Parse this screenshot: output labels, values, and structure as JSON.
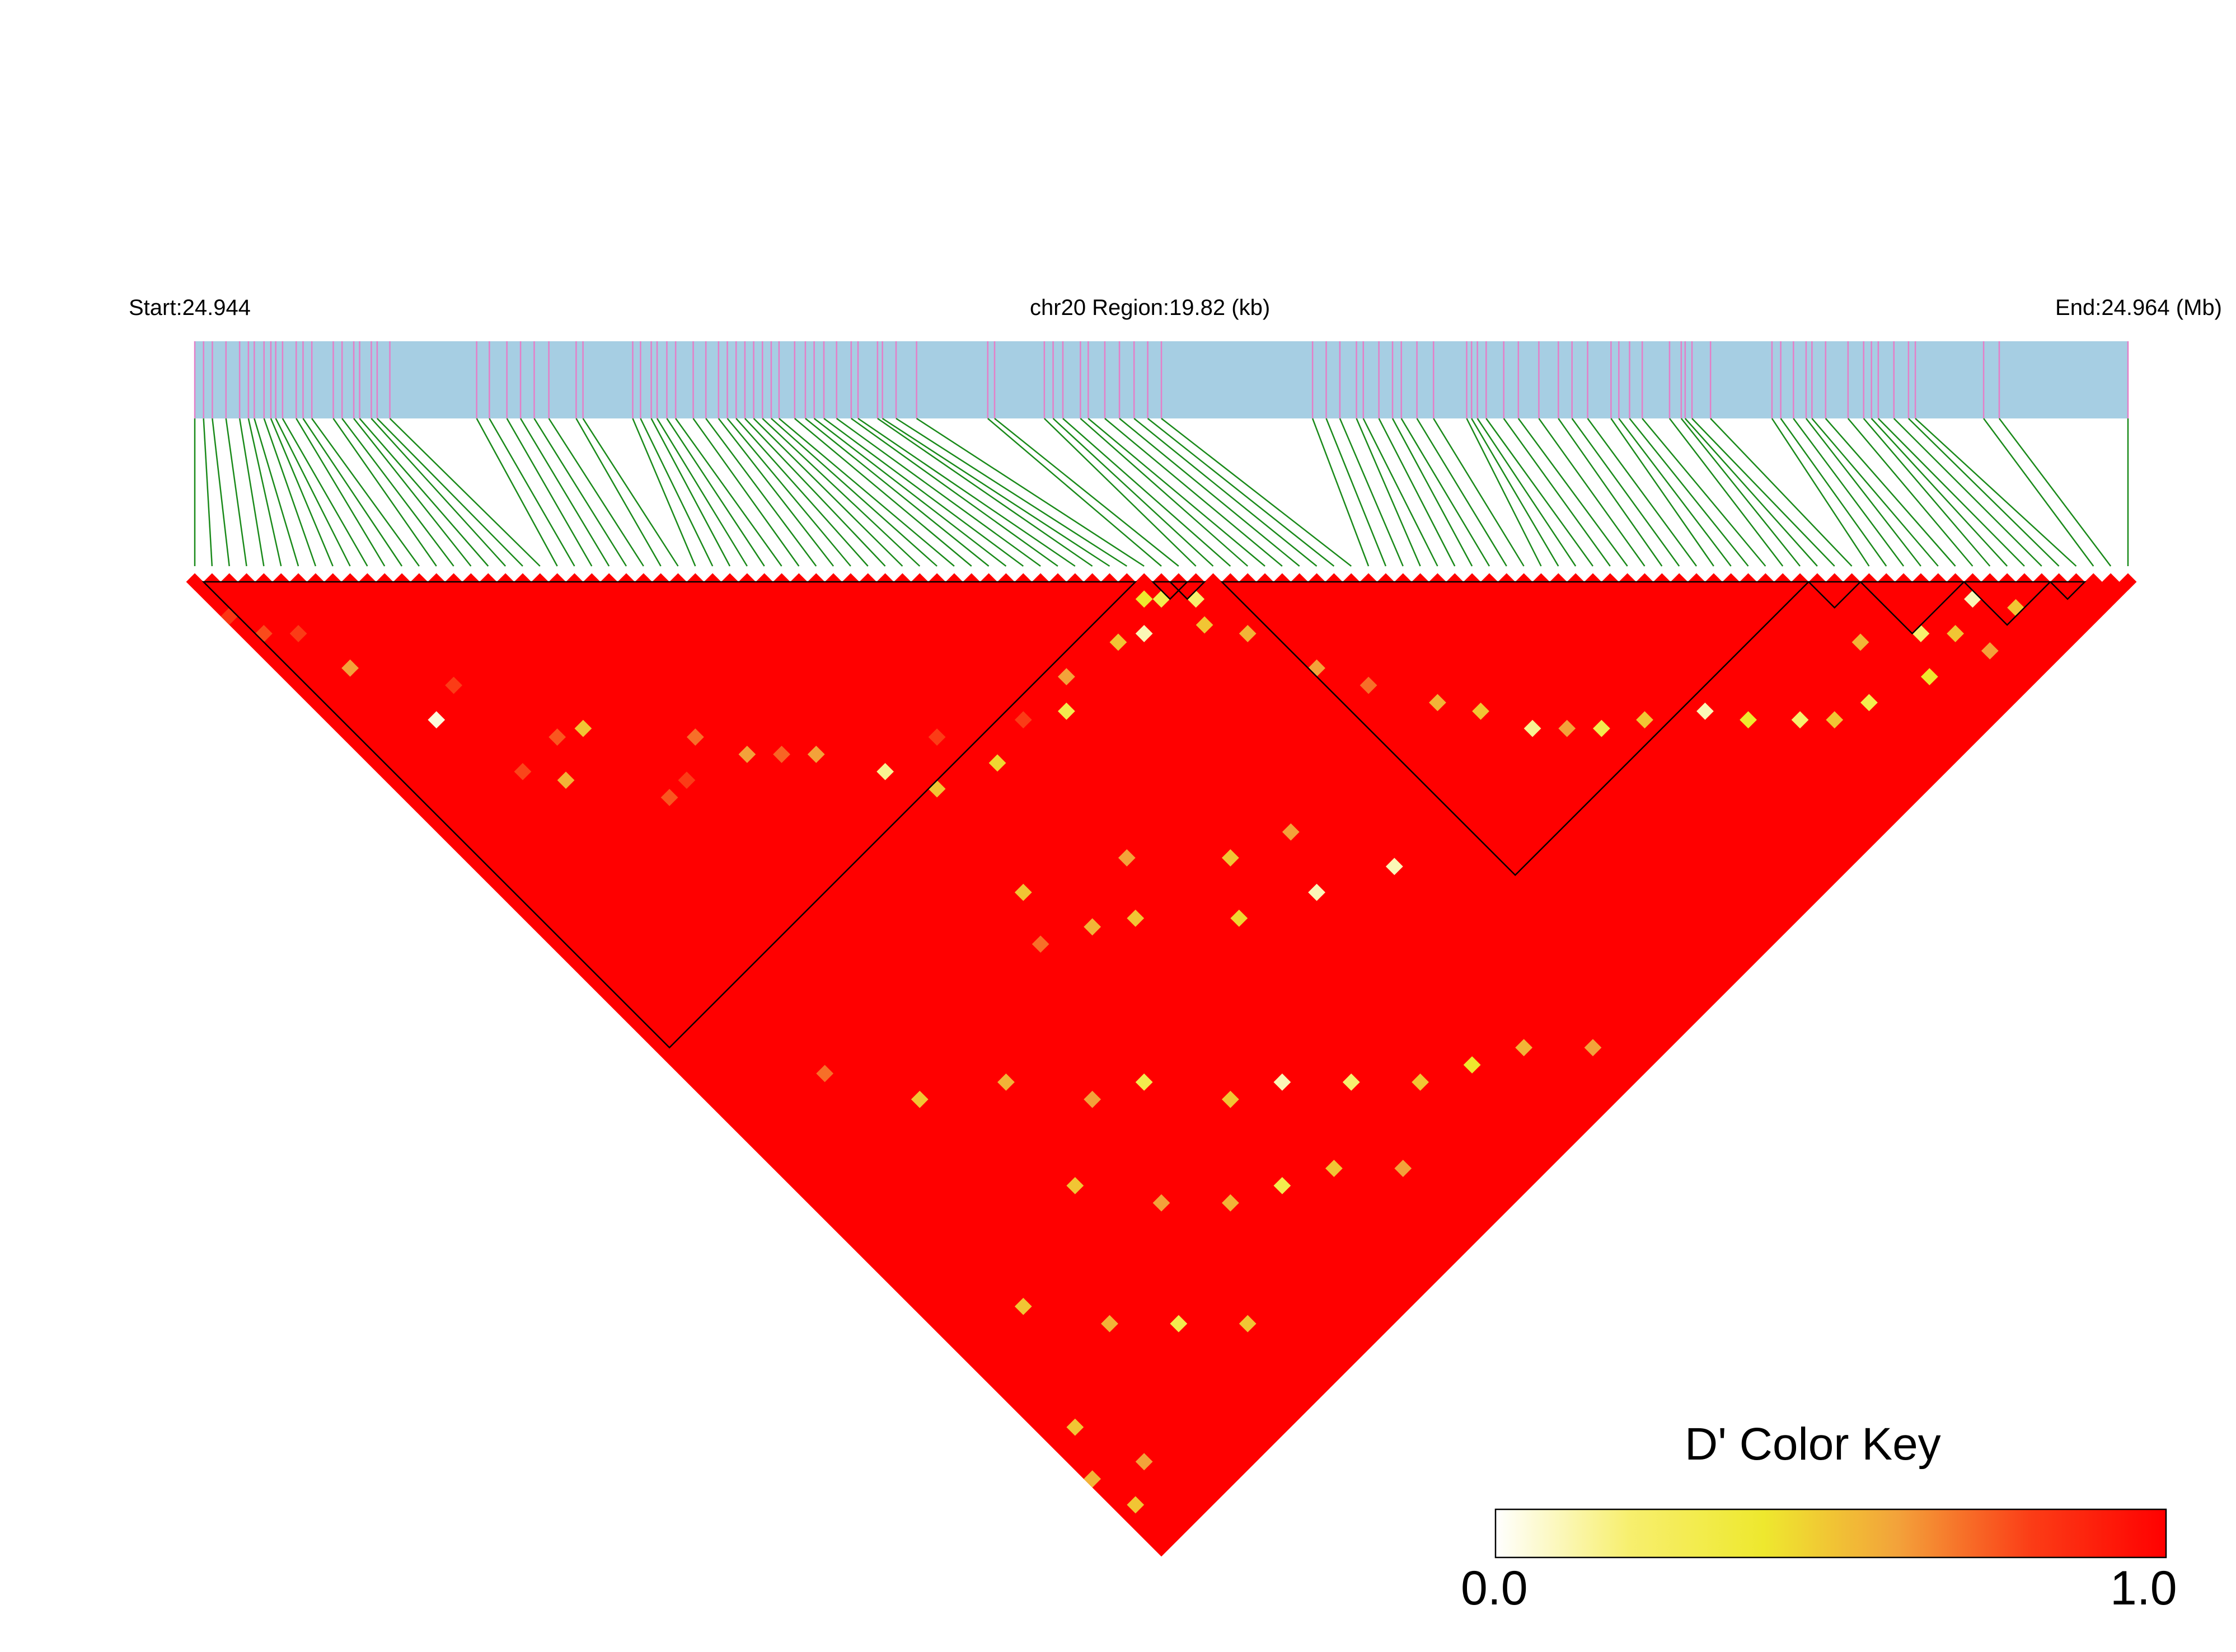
{
  "chart_data": {
    "type": "heatmap",
    "title": "",
    "chromosome": "chr20",
    "start_label": "Start:24.944",
    "end_label": "End:24.964 (Mb)",
    "region_label": "chr20 Region:19.82 (kb)",
    "start_mb": 24.944,
    "end_mb": 24.964,
    "region_kb": 19.82,
    "color_key": {
      "title": "D' Color Key",
      "min_label": "0.0",
      "max_label": "1.0",
      "min": 0.0,
      "max": 1.0,
      "colors": [
        "#ffffff",
        "#f7ef6e",
        "#eee82e",
        "#f3a23a",
        "#fb3c16",
        "#ff0000"
      ]
    },
    "matrix_color": "#ff0000",
    "snp_positions_kb": [
      0.0,
      0.09,
      0.18,
      0.32,
      0.46,
      0.55,
      0.61,
      0.71,
      0.78,
      0.83,
      0.9,
      1.04,
      1.11,
      1.2,
      1.42,
      1.51,
      1.63,
      1.69,
      1.81,
      1.87,
      2.0,
      2.89,
      3.02,
      3.2,
      3.34,
      3.48,
      3.63,
      3.91,
      3.98,
      4.49,
      4.57,
      4.68,
      4.74,
      4.84,
      4.93,
      5.11,
      5.24,
      5.37,
      5.46,
      5.55,
      5.64,
      5.73,
      5.82,
      5.91,
      5.99,
      6.15,
      6.26,
      6.35,
      6.45,
      6.58,
      6.73,
      6.8,
      7.0,
      7.05,
      7.19,
      7.4,
      8.13,
      8.2,
      8.71,
      8.8,
      8.9,
      9.08,
      9.16,
      9.33,
      9.48,
      9.63,
      9.77,
      9.91,
      11.46,
      11.6,
      11.74,
      11.91,
      11.98,
      12.14,
      12.28,
      12.37,
      12.53,
      12.7,
      13.04,
      13.09,
      13.15,
      13.24,
      13.42,
      13.57,
      13.78,
      13.98,
      14.12,
      14.28,
      14.52,
      14.6,
      14.71,
      14.84,
      15.12,
      15.24,
      15.28,
      15.35,
      15.54,
      16.17,
      16.26,
      16.39,
      16.52,
      16.58,
      16.72,
      16.95,
      17.11,
      17.19,
      17.26,
      17.42,
      17.57,
      17.64,
      18.34,
      18.5,
      19.82
    ],
    "ld_blocks": [
      {
        "first_snp": 1,
        "last_snp": 54
      },
      {
        "first_snp": 56,
        "last_snp": 57
      },
      {
        "first_snp": 57,
        "last_snp": 58
      },
      {
        "first_snp": 60,
        "last_snp": 93
      },
      {
        "first_snp": 94,
        "last_snp": 96
      },
      {
        "first_snp": 97,
        "last_snp": 102
      },
      {
        "first_snp": 103,
        "last_snp": 107
      },
      {
        "first_snp": 108,
        "last_snp": 109
      }
    ],
    "low_dprime_cells": [
      {
        "i": 0,
        "j": 4,
        "d": 0.82
      },
      {
        "i": 1,
        "j": 7,
        "d": 0.77
      },
      {
        "i": 3,
        "j": 9,
        "d": 0.8
      },
      {
        "i": 4,
        "j": 14,
        "d": 0.6
      },
      {
        "i": 6,
        "j": 22,
        "d": 0.05
      },
      {
        "i": 8,
        "j": 30,
        "d": 0.78
      },
      {
        "i": 9,
        "j": 21,
        "d": 0.8
      },
      {
        "i": 12,
        "j": 30,
        "d": 0.75
      },
      {
        "i": 14,
        "j": 31,
        "d": 0.5
      },
      {
        "i": 10,
        "j": 33,
        "d": 0.55
      },
      {
        "i": 15,
        "j": 40,
        "d": 0.75
      },
      {
        "i": 17,
        "j": 40,
        "d": 0.8
      },
      {
        "i": 20,
        "j": 38,
        "d": 0.7
      },
      {
        "i": 22,
        "j": 42,
        "d": 0.6
      },
      {
        "i": 24,
        "j": 44,
        "d": 0.72
      },
      {
        "i": 26,
        "j": 46,
        "d": 0.6
      },
      {
        "i": 29,
        "j": 51,
        "d": 0.15
      },
      {
        "i": 31,
        "j": 55,
        "d": 0.5
      },
      {
        "i": 34,
        "j": 52,
        "d": 0.8
      },
      {
        "i": 36,
        "j": 57,
        "d": 0.45
      },
      {
        "i": 40,
        "j": 56,
        "d": 0.8
      },
      {
        "i": 43,
        "j": 58,
        "d": 0.3
      },
      {
        "i": 45,
        "j": 56,
        "d": 0.6
      },
      {
        "i": 50,
        "j": 57,
        "d": 0.5
      },
      {
        "i": 52,
        "j": 58,
        "d": 0.1
      },
      {
        "i": 54,
        "j": 56,
        "d": 0.4
      },
      {
        "i": 55,
        "j": 57,
        "d": 0.3
      },
      {
        "i": 56,
        "j": 61,
        "d": 0.5
      },
      {
        "i": 57,
        "j": 59,
        "d": 0.2
      },
      {
        "i": 58,
        "j": 64,
        "d": 0.55
      },
      {
        "i": 30,
        "j": 66,
        "d": 0.5
      },
      {
        "i": 28,
        "j": 70,
        "d": 0.7
      },
      {
        "i": 32,
        "j": 72,
        "d": 0.55
      },
      {
        "i": 35,
        "j": 74,
        "d": 0.5
      },
      {
        "i": 38,
        "j": 70,
        "d": 0.6
      },
      {
        "i": 41,
        "j": 80,
        "d": 0.45
      },
      {
        "i": 44,
        "j": 76,
        "d": 0.5
      },
      {
        "i": 47,
        "j": 83,
        "d": 0.1
      },
      {
        "i": 49,
        "j": 78,
        "d": 0.6
      },
      {
        "i": 53,
        "j": 86,
        "d": 0.1
      },
      {
        "i": 60,
        "j": 70,
        "d": 0.6
      },
      {
        "i": 62,
        "j": 74,
        "d": 0.7
      },
      {
        "i": 65,
        "j": 79,
        "d": 0.55
      },
      {
        "i": 67,
        "j": 82,
        "d": 0.5
      },
      {
        "i": 69,
        "j": 86,
        "d": 0.15
      },
      {
        "i": 71,
        "j": 88,
        "d": 0.6
      },
      {
        "i": 73,
        "j": 90,
        "d": 0.3
      },
      {
        "i": 76,
        "j": 92,
        "d": 0.5
      },
      {
        "i": 80,
        "j": 95,
        "d": 0.1
      },
      {
        "i": 82,
        "j": 98,
        "d": 0.4
      },
      {
        "i": 85,
        "j": 101,
        "d": 0.2
      },
      {
        "i": 87,
        "j": 103,
        "d": 0.5
      },
      {
        "i": 90,
        "j": 104,
        "d": 0.3
      },
      {
        "i": 93,
        "j": 100,
        "d": 0.55
      },
      {
        "i": 95,
        "j": 106,
        "d": 0.4
      },
      {
        "i": 97,
        "j": 103,
        "d": 0.2
      },
      {
        "i": 99,
        "j": 105,
        "d": 0.5
      },
      {
        "i": 100,
        "j": 108,
        "d": 0.6
      },
      {
        "i": 102,
        "j": 104,
        "d": 0.1
      },
      {
        "i": 104,
        "j": 107,
        "d": 0.5
      },
      {
        "i": 8,
        "j": 65,
        "d": 0.7
      },
      {
        "i": 12,
        "j": 72,
        "d": 0.5
      },
      {
        "i": 18,
        "j": 76,
        "d": 0.55
      },
      {
        "i": 22,
        "j": 82,
        "d": 0.6
      },
      {
        "i": 26,
        "j": 84,
        "d": 0.3
      },
      {
        "i": 30,
        "j": 90,
        "d": 0.5
      },
      {
        "i": 34,
        "j": 92,
        "d": 0.1
      },
      {
        "i": 38,
        "j": 96,
        "d": 0.2
      },
      {
        "i": 42,
        "j": 100,
        "d": 0.5
      },
      {
        "i": 46,
        "j": 102,
        "d": 0.4
      },
      {
        "i": 50,
        "j": 104,
        "d": 0.55
      },
      {
        "i": 54,
        "j": 108,
        "d": 0.6
      },
      {
        "i": 16,
        "j": 86,
        "d": 0.5
      },
      {
        "i": 20,
        "j": 92,
        "d": 0.6
      },
      {
        "i": 24,
        "j": 96,
        "d": 0.55
      },
      {
        "i": 28,
        "j": 98,
        "d": 0.3
      },
      {
        "i": 32,
        "j": 100,
        "d": 0.5
      },
      {
        "i": 36,
        "j": 104,
        "d": 0.6
      },
      {
        "i": 6,
        "j": 90,
        "d": 0.5
      },
      {
        "i": 10,
        "j": 96,
        "d": 0.55
      },
      {
        "i": 14,
        "j": 100,
        "d": 0.3
      },
      {
        "i": 18,
        "j": 104,
        "d": 0.5
      },
      {
        "i": 2,
        "j": 100,
        "d": 0.5
      },
      {
        "i": 4,
        "j": 106,
        "d": 0.6
      },
      {
        "i": 0,
        "j": 104,
        "d": 0.55
      },
      {
        "i": 1,
        "j": 108,
        "d": 0.5
      }
    ]
  }
}
